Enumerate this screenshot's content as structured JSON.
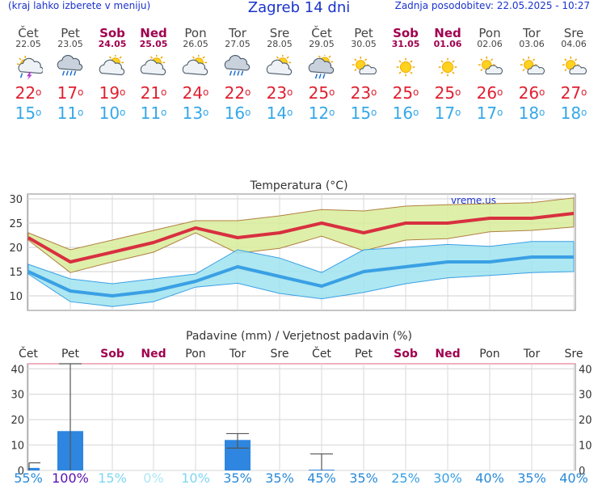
{
  "header": {
    "left_note": "(kraj lahko izberete v meniju)",
    "title": "Zagreb 14 dni",
    "updated": "Zadnja posodobitev: 22.05.2025 - 10:27"
  },
  "colors": {
    "accent": "#1a33cc",
    "weekend": "#a0004e",
    "max_temp": "#e02030",
    "min_temp": "#35a8e8",
    "max_band": "#d8ec9a",
    "min_band": "#9fe3f0",
    "precip_bar": "#2e86e0"
  },
  "days": [
    {
      "name": "Čet",
      "date": "22.05",
      "weekend": false,
      "icon": "thunderstorm-icon",
      "tmax": "22",
      "tmin": "15"
    },
    {
      "name": "Pet",
      "date": "23.05",
      "weekend": false,
      "icon": "heavy-rain-icon",
      "tmax": "17",
      "tmin": "11"
    },
    {
      "name": "Sob",
      "date": "24.05",
      "weekend": true,
      "icon": "partly-cloudy-icon",
      "tmax": "19",
      "tmin": "10"
    },
    {
      "name": "Ned",
      "date": "25.05",
      "weekend": true,
      "icon": "partly-cloudy-icon",
      "tmax": "21",
      "tmin": "11"
    },
    {
      "name": "Pon",
      "date": "26.05",
      "weekend": false,
      "icon": "partly-cloudy-icon",
      "tmax": "24",
      "tmin": "13"
    },
    {
      "name": "Tor",
      "date": "27.05",
      "weekend": false,
      "icon": "heavy-rain-icon",
      "tmax": "22",
      "tmin": "16"
    },
    {
      "name": "Sre",
      "date": "28.05",
      "weekend": false,
      "icon": "partly-cloudy-icon",
      "tmax": "23",
      "tmin": "14"
    },
    {
      "name": "Čet",
      "date": "29.05",
      "weekend": false,
      "icon": "sun-rain-icon",
      "tmax": "25",
      "tmin": "12"
    },
    {
      "name": "Pet",
      "date": "30.05",
      "weekend": false,
      "icon": "mostly-sunny-icon",
      "tmax": "23",
      "tmin": "15"
    },
    {
      "name": "Sob",
      "date": "31.05",
      "weekend": true,
      "icon": "sunny-icon",
      "tmax": "25",
      "tmin": "16"
    },
    {
      "name": "Ned",
      "date": "01.06",
      "weekend": true,
      "icon": "sunny-icon",
      "tmax": "25",
      "tmin": "17"
    },
    {
      "name": "Pon",
      "date": "02.06",
      "weekend": false,
      "icon": "mostly-sunny-icon",
      "tmax": "26",
      "tmin": "17"
    },
    {
      "name": "Tor",
      "date": "03.06",
      "weekend": false,
      "icon": "mostly-sunny-icon",
      "tmax": "26",
      "tmin": "18"
    },
    {
      "name": "Sre",
      "date": "04.06",
      "weekend": false,
      "icon": "mostly-sunny-icon",
      "tmax": "27",
      "tmin": "18"
    }
  ],
  "chart_data": [
    {
      "type": "line",
      "title": "Temperatura (°C)",
      "watermark": "vreme.us",
      "ylim": [
        7,
        31
      ],
      "yticks": [
        10,
        15,
        20,
        25,
        30
      ],
      "grid": true,
      "series": [
        {
          "values": [
            22,
            17,
            19,
            21,
            24,
            22,
            23,
            25,
            23,
            25,
            25,
            26,
            26,
            27
          ]
        },
        {
          "values": [
            15,
            11,
            10,
            11,
            13,
            16,
            14,
            12,
            15,
            16,
            17,
            17,
            18,
            18
          ]
        }
      ],
      "max_band_upper": [
        23,
        19.5,
        21.5,
        23.5,
        25.5,
        25.5,
        26.5,
        27.8,
        27.5,
        28.5,
        28.8,
        29,
        29.2,
        30.2
      ],
      "max_band_lower": [
        21.5,
        14.8,
        17,
        19,
        23,
        18.8,
        19.8,
        22.3,
        19.3,
        21.5,
        21.8,
        23.2,
        23.5,
        24.2
      ],
      "min_band_upper": [
        16.5,
        13.5,
        12.5,
        13.5,
        14.5,
        19.5,
        17.8,
        14.8,
        19.5,
        20,
        20.6,
        20.2,
        21.2,
        21.2
      ],
      "min_band_lower": [
        14.5,
        8.8,
        7.8,
        8.8,
        11.8,
        12.6,
        10.5,
        9.4,
        10.7,
        12.5,
        13.7,
        14.2,
        14.8,
        15
      ]
    },
    {
      "type": "bar",
      "title": "Padavine (mm) / Verjetnost padavin (%)",
      "categories": [
        "Čet",
        "Pet",
        "Sob",
        "Ned",
        "Pon",
        "Tor",
        "Sre",
        "Čet",
        "Pet",
        "Sob",
        "Ned",
        "Pon",
        "Tor",
        "Sre"
      ],
      "weekend": [
        false,
        false,
        true,
        true,
        false,
        false,
        false,
        false,
        false,
        true,
        true,
        false,
        false,
        false
      ],
      "ylim": [
        0,
        42
      ],
      "yticks": [
        0,
        10,
        20,
        30,
        40
      ],
      "values": [
        1,
        15.5,
        0,
        0,
        0,
        12,
        0,
        0.3,
        0,
        0,
        0,
        0,
        0,
        0
      ],
      "error_bars": [
        [
          0,
          3
        ],
        [
          0,
          42
        ],
        null,
        null,
        null,
        [
          8.8,
          14.5
        ],
        null,
        [
          0,
          6.5
        ],
        null,
        null,
        null,
        null,
        null,
        null
      ],
      "probability": [
        "55%",
        "100%",
        "15%",
        "0%",
        "10%",
        "35%",
        "35%",
        "45%",
        "35%",
        "25%",
        "30%",
        "40%",
        "35%",
        "40%"
      ],
      "probability_colors": [
        "#2a8ad8",
        "#5a10b0",
        "#7ed6f0",
        "#aee8f6",
        "#7ed6f0",
        "#2a8ad8",
        "#2a8ad8",
        "#2a8ad8",
        "#2a8ad8",
        "#3aa0e4",
        "#3aa0e4",
        "#2a8ad8",
        "#2a8ad8",
        "#2a8ad8"
      ]
    }
  ]
}
